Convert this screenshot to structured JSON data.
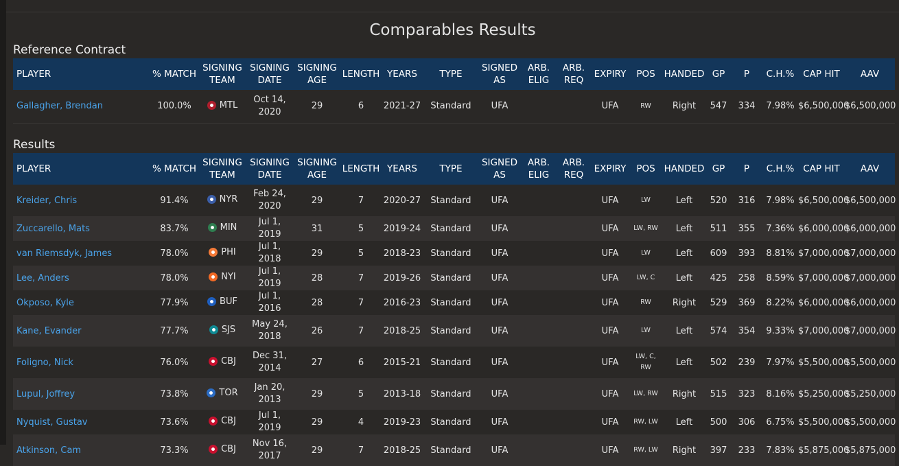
{
  "page": {
    "title": "Comparables Results"
  },
  "reference": {
    "label": "Reference Contract",
    "row": {
      "player": "Gallagher, Brendan",
      "match": "100.0%",
      "team": "MTL",
      "team_color": "#af1e2d",
      "date": "Oct 14, 2020",
      "age": "29",
      "length": "6",
      "years": "2021-27",
      "type": "Standard",
      "signed_as": "UFA",
      "arb_elig": "",
      "arb_req": "",
      "expiry": "UFA",
      "pos": "RW",
      "handed": "Right",
      "gp": "547",
      "p": "334",
      "ch": "7.98%",
      "cap_hit": "$6,500,000",
      "aav": "$6,500,000"
    }
  },
  "results": {
    "label": "Results",
    "rows": [
      {
        "player": "Kreider, Chris",
        "match": "91.4%",
        "team": "NYR",
        "team_color": "#3b5ea8",
        "date": "Feb 24, 2020",
        "age": "29",
        "length": "7",
        "years": "2020-27",
        "type": "Standard",
        "signed_as": "UFA",
        "arb_elig": "",
        "arb_req": "",
        "expiry": "UFA",
        "pos": "LW",
        "handed": "Left",
        "gp": "520",
        "p": "316",
        "ch": "7.98%",
        "cap_hit": "$6,500,000",
        "aav": "$6,500,000"
      },
      {
        "player": "Zuccarello, Mats",
        "match": "83.7%",
        "team": "MIN",
        "team_color": "#2e7d4f",
        "date": "Jul 1, 2019",
        "age": "31",
        "length": "5",
        "years": "2019-24",
        "type": "Standard",
        "signed_as": "UFA",
        "arb_elig": "",
        "arb_req": "",
        "expiry": "UFA",
        "pos": "LW, RW",
        "handed": "Left",
        "gp": "511",
        "p": "355",
        "ch": "7.36%",
        "cap_hit": "$6,000,000",
        "aav": "$6,000,000"
      },
      {
        "player": "van Riemsdyk, James",
        "match": "78.0%",
        "team": "PHI",
        "team_color": "#f47a38",
        "date": "Jul 1, 2018",
        "age": "29",
        "length": "5",
        "years": "2018-23",
        "type": "Standard",
        "signed_as": "UFA",
        "arb_elig": "",
        "arb_req": "",
        "expiry": "UFA",
        "pos": "LW",
        "handed": "Left",
        "gp": "609",
        "p": "393",
        "ch": "8.81%",
        "cap_hit": "$7,000,000",
        "aav": "$7,000,000"
      },
      {
        "player": "Lee, Anders",
        "match": "78.0%",
        "team": "NYI",
        "team_color": "#f26924",
        "date": "Jul 1, 2019",
        "age": "28",
        "length": "7",
        "years": "2019-26",
        "type": "Standard",
        "signed_as": "UFA",
        "arb_elig": "",
        "arb_req": "",
        "expiry": "UFA",
        "pos": "LW, C",
        "handed": "Left",
        "gp": "425",
        "p": "258",
        "ch": "8.59%",
        "cap_hit": "$7,000,000",
        "aav": "$7,000,000"
      },
      {
        "player": "Okposo, Kyle",
        "match": "77.9%",
        "team": "BUF",
        "team_color": "#1f5fbf",
        "date": "Jul 1, 2016",
        "age": "28",
        "length": "7",
        "years": "2016-23",
        "type": "Standard",
        "signed_as": "UFA",
        "arb_elig": "",
        "arb_req": "",
        "expiry": "UFA",
        "pos": "RW",
        "handed": "Right",
        "gp": "529",
        "p": "369",
        "ch": "8.22%",
        "cap_hit": "$6,000,000",
        "aav": "$6,000,000"
      },
      {
        "player": "Kane, Evander",
        "match": "77.7%",
        "team": "SJS",
        "team_color": "#0f8a94",
        "date": "May 24, 2018",
        "age": "26",
        "length": "7",
        "years": "2018-25",
        "type": "Standard",
        "signed_as": "UFA",
        "arb_elig": "",
        "arb_req": "",
        "expiry": "UFA",
        "pos": "LW",
        "handed": "Left",
        "gp": "574",
        "p": "354",
        "ch": "9.33%",
        "cap_hit": "$7,000,000",
        "aav": "$7,000,000"
      },
      {
        "player": "Foligno, Nick",
        "match": "76.0%",
        "team": "CBJ",
        "team_color": "#c8102e",
        "date": "Dec 31, 2014",
        "age": "27",
        "length": "6",
        "years": "2015-21",
        "type": "Standard",
        "signed_as": "UFA",
        "arb_elig": "",
        "arb_req": "",
        "expiry": "UFA",
        "pos": "LW, C, RW",
        "handed": "Left",
        "gp": "502",
        "p": "239",
        "ch": "7.97%",
        "cap_hit": "$5,500,000",
        "aav": "$5,500,000"
      },
      {
        "player": "Lupul, Joffrey",
        "match": "73.8%",
        "team": "TOR",
        "team_color": "#2b6cc4",
        "date": "Jan 20, 2013",
        "age": "29",
        "length": "5",
        "years": "2013-18",
        "type": "Standard",
        "signed_as": "UFA",
        "arb_elig": "",
        "arb_req": "",
        "expiry": "UFA",
        "pos": "LW, RW",
        "handed": "Right",
        "gp": "515",
        "p": "323",
        "ch": "8.16%",
        "cap_hit": "$5,250,000",
        "aav": "$5,250,000"
      },
      {
        "player": "Nyquist, Gustav",
        "match": "73.6%",
        "team": "CBJ",
        "team_color": "#c8102e",
        "date": "Jul 1, 2019",
        "age": "29",
        "length": "4",
        "years": "2019-23",
        "type": "Standard",
        "signed_as": "UFA",
        "arb_elig": "",
        "arb_req": "",
        "expiry": "UFA",
        "pos": "RW, LW",
        "handed": "Left",
        "gp": "500",
        "p": "306",
        "ch": "6.75%",
        "cap_hit": "$5,500,000",
        "aav": "$5,500,000"
      },
      {
        "player": "Atkinson, Cam",
        "match": "73.3%",
        "team": "CBJ",
        "team_color": "#c8102e",
        "date": "Nov 16, 2017",
        "age": "29",
        "length": "7",
        "years": "2018-25",
        "type": "Standard",
        "signed_as": "UFA",
        "arb_elig": "",
        "arb_req": "",
        "expiry": "UFA",
        "pos": "RW, LW",
        "handed": "Right",
        "gp": "397",
        "p": "233",
        "ch": "7.83%",
        "cap_hit": "$5,875,000",
        "aav": "$5,875,000"
      }
    ]
  },
  "columns": {
    "player": "PLAYER",
    "match": "% MATCH",
    "team": "SIGNING TEAM",
    "date": "SIGNING DATE",
    "age": "SIGNING AGE",
    "length": "LENGTH",
    "years": "YEARS",
    "type": "TYPE",
    "signed_as": "SIGNED AS",
    "arb_elig": "ARB. ELIG",
    "arb_req": "ARB. REQ",
    "expiry": "EXPIRY",
    "pos": "POS",
    "handed": "HANDED",
    "gp": "GP",
    "p": "P",
    "ch": "C.H.%",
    "cap_hit": "CAP HIT",
    "aav": "AAV"
  }
}
